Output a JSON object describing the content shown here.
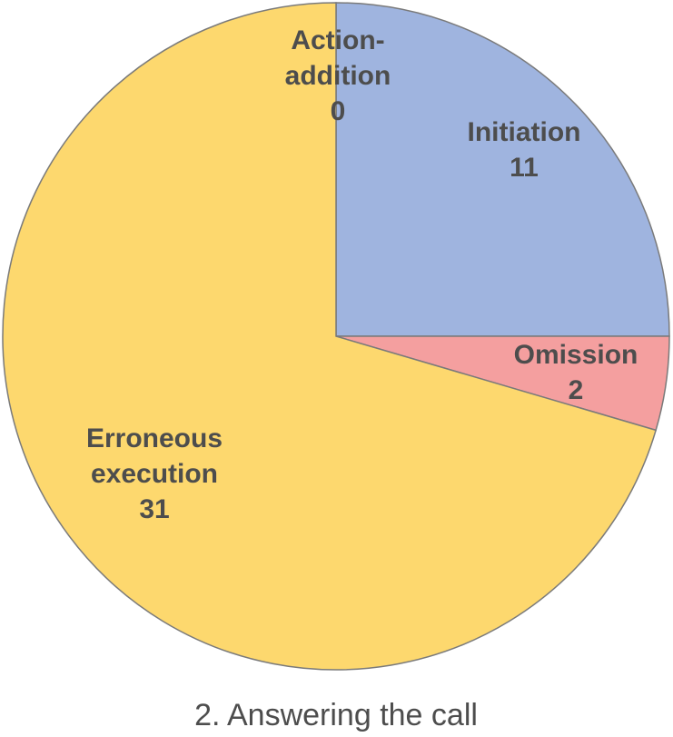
{
  "chart_data": {
    "type": "pie",
    "title": "2. Answering the call",
    "slices": [
      {
        "label_lines": [
          "Initiation"
        ],
        "value": 11,
        "color": "#9fb4df"
      },
      {
        "label_lines": [
          "Omission"
        ],
        "value": 2,
        "color": "#f49f9f"
      },
      {
        "label_lines": [
          "Erroneous",
          "execution"
        ],
        "value": 31,
        "color": "#fdd86e"
      },
      {
        "label_lines": [
          "Action-",
          "addition"
        ],
        "value": 0,
        "color": "#a5a5a5"
      }
    ]
  }
}
